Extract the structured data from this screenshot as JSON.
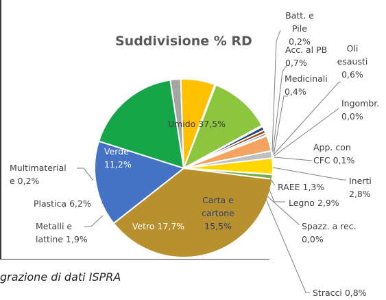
{
  "chart_data": {
    "type": "pie",
    "title": "Suddivisione % RD",
    "slices": [
      {
        "label": "Umido 37,5%",
        "value": 37.5,
        "color": "#b8902e"
      },
      {
        "label": "Carta e cartone 15,5%",
        "value": 15.5,
        "color": "#4472c4"
      },
      {
        "label": "Vetro 17,7%",
        "value": 17.7,
        "color": "#17a54a"
      },
      {
        "label": "Metalli e lattine 1,9%",
        "value": 1.9,
        "color": "#a5a5a5"
      },
      {
        "label": "Plastica 6,2%",
        "value": 6.2,
        "color": "#ffc000"
      },
      {
        "label": "Multimateriale 0,2%",
        "value": 0.2,
        "color": "#4472c4"
      },
      {
        "label": "Verde 11,2%",
        "value": 11.2,
        "color": "#8cc63f"
      },
      {
        "label": "Batt. e Pile 0,2%",
        "value": 0.2,
        "color": "#7f6000"
      },
      {
        "label": "Acc. al PB 0,7%",
        "value": 0.7,
        "color": "#264478"
      },
      {
        "label": "Oli esausti 0,6%",
        "value": 0.6,
        "color": "#9e480e"
      },
      {
        "label": "Medicinali 0,4%",
        "value": 0.4,
        "color": "#636363"
      },
      {
        "label": "Ingombr. 0,0%",
        "value": 0.05,
        "color": "#997300"
      },
      {
        "label": "App. con CFC 0,1%",
        "value": 0.1,
        "color": "#255e91"
      },
      {
        "label": "Inerti 2,8%",
        "value": 2.8,
        "color": "#f4a460"
      },
      {
        "label": "RAEE 1,3%",
        "value": 1.3,
        "color": "#bfbfbf"
      },
      {
        "label": "Legno 2,9%",
        "value": 2.9,
        "color": "#ffd700"
      },
      {
        "label": "Spazz. a rec. 0,0%",
        "value": 0.05,
        "color": "#5b9bd5"
      },
      {
        "label": "Stracci 0,8%",
        "value": 0.8,
        "color": "#70ad47"
      }
    ],
    "labels": {
      "title": "Suddivisione % RD",
      "umido": [
        "Umido 37,5%"
      ],
      "carta": [
        "Carta e",
        "cartone",
        "15,5%"
      ],
      "vetro": [
        "Vetro 17,7%"
      ],
      "verde": [
        "Verde",
        "11,2%"
      ],
      "multimateriale": [
        "Multimaterial",
        "e 0,2%"
      ],
      "plastica": [
        "Plastica 6,2%"
      ],
      "metalli": [
        "Metalli e",
        "lattine 1,9%"
      ],
      "batt": [
        "Batt. e",
        "Pile",
        "0,2%"
      ],
      "acc": [
        "Acc. al PB",
        "0,7%"
      ],
      "oli": [
        "Oli",
        "esausti",
        "0,6%"
      ],
      "medicinali": [
        "Medicinali",
        "0,4%"
      ],
      "ingombr": [
        "Ingombr.",
        "0,0%"
      ],
      "app": [
        "App. con",
        "CFC 0,1%"
      ],
      "inerti": [
        "Inerti",
        "2,8%"
      ],
      "raee": [
        "RAEE 1,3%"
      ],
      "legno": [
        "Legno 2,9%"
      ],
      "spazz": [
        "Spazz. a rec.",
        "0,0%"
      ],
      "stracci": [
        "Stracci 0,8%"
      ]
    }
  },
  "caption": "grazione di dati ISPRA"
}
